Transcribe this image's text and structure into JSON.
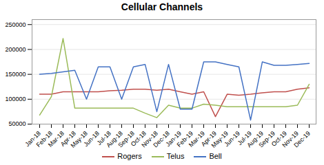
{
  "chart_data": {
    "type": "line",
    "title": "Cellular Channels",
    "categories": [
      "Jan-18",
      "Feb-18",
      "Mar-18",
      "Apr-18",
      "May-18",
      "Jun-18",
      "Jul-18",
      "Aug-18",
      "Sep-18",
      "Oct-18",
      "Nov-18",
      "Dec-18",
      "Jan-19",
      "Feb-19",
      "Mar-19",
      "Apr-19",
      "May-19",
      "Jun-19",
      "Jul-19",
      "Aug-19",
      "Sep-19",
      "Oct-19",
      "Nov-19",
      "Dec-19"
    ],
    "series": [
      {
        "name": "Rogers",
        "color": "#c0504d",
        "values": [
          110000,
          110000,
          115000,
          115000,
          115000,
          115000,
          117000,
          118000,
          120000,
          120000,
          118000,
          120000,
          115000,
          110000,
          115000,
          65000,
          110000,
          108000,
          110000,
          113000,
          115000,
          115000,
          120000,
          123000
        ]
      },
      {
        "name": "Telus",
        "color": "#9bbb59",
        "values": [
          68000,
          105000,
          222000,
          82000,
          82000,
          82000,
          82000,
          82000,
          82000,
          72000,
          63000,
          88000,
          82000,
          82000,
          90000,
          88000,
          85000,
          85000,
          85000,
          85000,
          85000,
          85000,
          88000,
          130000
        ]
      },
      {
        "name": "Bell",
        "color": "#4472c4",
        "values": [
          150000,
          152000,
          155000,
          158000,
          100000,
          165000,
          165000,
          100000,
          165000,
          170000,
          75000,
          170000,
          80000,
          80000,
          175000,
          175000,
          170000,
          165000,
          58000,
          175000,
          168000,
          168000,
          170000,
          172000
        ]
      }
    ],
    "ylim": [
      50000,
      260000
    ],
    "yticks": [
      50000,
      100000,
      150000,
      200000,
      250000
    ],
    "grid": true,
    "legend": "bottom"
  }
}
